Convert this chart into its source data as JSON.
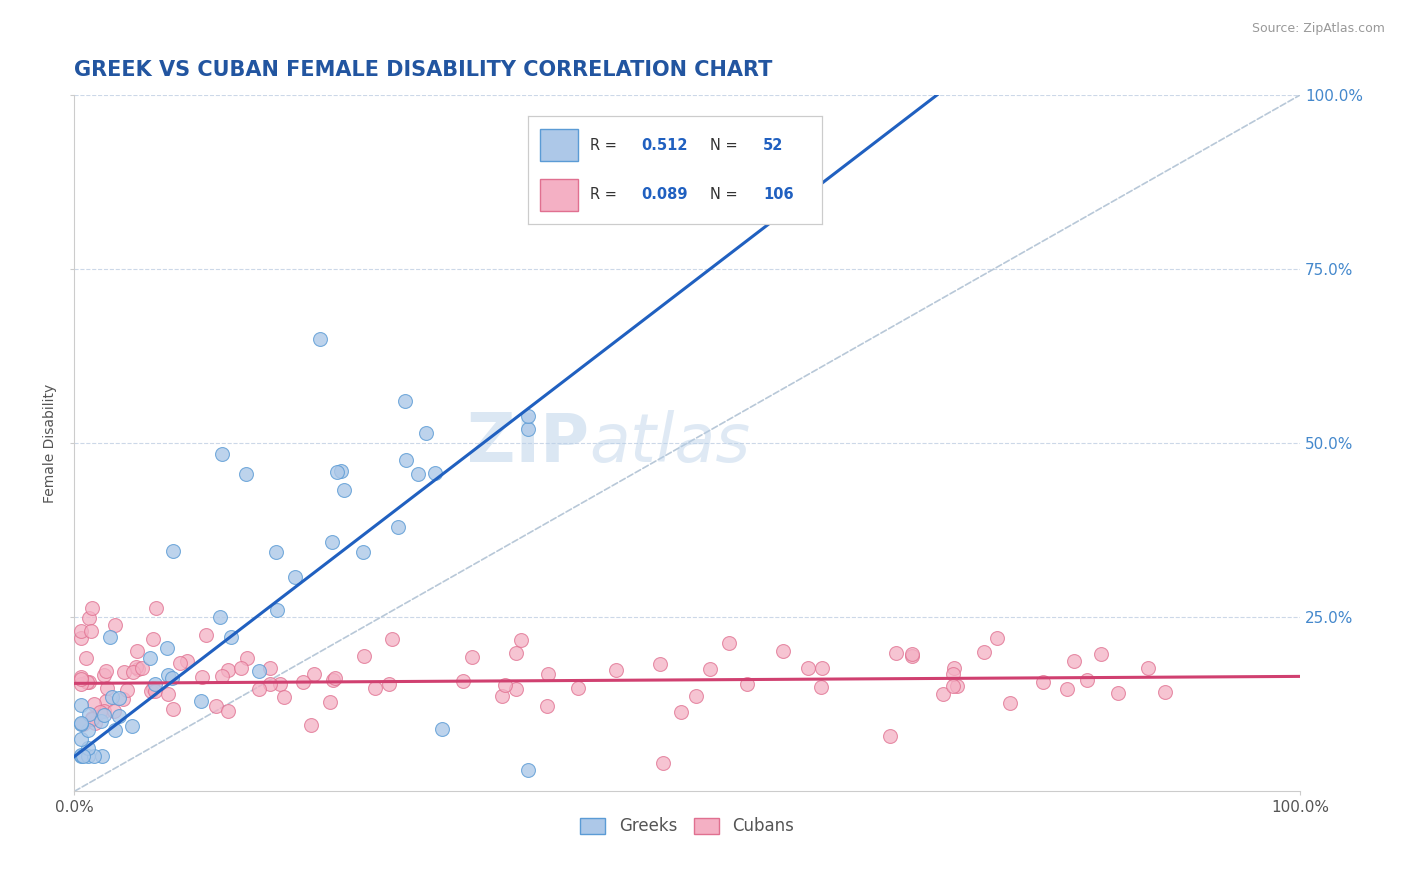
{
  "title": "GREEK VS CUBAN FEMALE DISABILITY CORRELATION CHART",
  "source_text": "Source: ZipAtlas.com",
  "ylabel": "Female Disability",
  "watermark": "ZIPatlas",
  "xlim": [
    0.0,
    1.0
  ],
  "ylim": [
    0.0,
    1.0
  ],
  "x_tick_labels": [
    "0.0%",
    "100.0%"
  ],
  "y_right_tick_labels": [
    "25.0%",
    "50.0%",
    "75.0%",
    "100.0%"
  ],
  "greek_color": "#adc8e8",
  "greek_edge_color": "#5b9bd5",
  "cuban_color": "#f4b0c4",
  "cuban_edge_color": "#e07090",
  "greek_line_color": "#2060c0",
  "cuban_line_color": "#d04070",
  "ref_line_color": "#b8c8d8",
  "title_color": "#2255a0",
  "legend_color": "#2060c0",
  "right_axis_color": "#4488cc",
  "greek_R": 0.512,
  "greek_N": 52,
  "cuban_R": 0.089,
  "cuban_N": 106,
  "background_color": "#ffffff",
  "grid_color": "#ccd8e8",
  "title_fontsize": 15,
  "label_fontsize": 10,
  "tick_fontsize": 11,
  "marker_size": 100
}
